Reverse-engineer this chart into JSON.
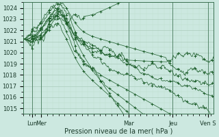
{
  "xlabel": "Pression niveau de la mer( hPa )",
  "bg_color": "#cce8e0",
  "grid_color_major": "#aaccbb",
  "grid_color_minor": "#bbddcc",
  "line_color": "#1a5c28",
  "ylim": [
    1014.5,
    1024.5
  ],
  "yticks": [
    1015,
    1016,
    1017,
    1018,
    1019,
    1020,
    1021,
    1022,
    1023,
    1024
  ],
  "xlim_hours": 130,
  "total_hours": 120,
  "xlabel_fontsize": 7,
  "tick_fontsize": 6,
  "day_tick_hours": [
    6,
    12,
    72,
    102,
    126
  ],
  "day_tick_labels": [
    "Lun",
    "Mer",
    "Mar",
    "Jeu",
    "Ven S"
  ],
  "num_lines": 10
}
